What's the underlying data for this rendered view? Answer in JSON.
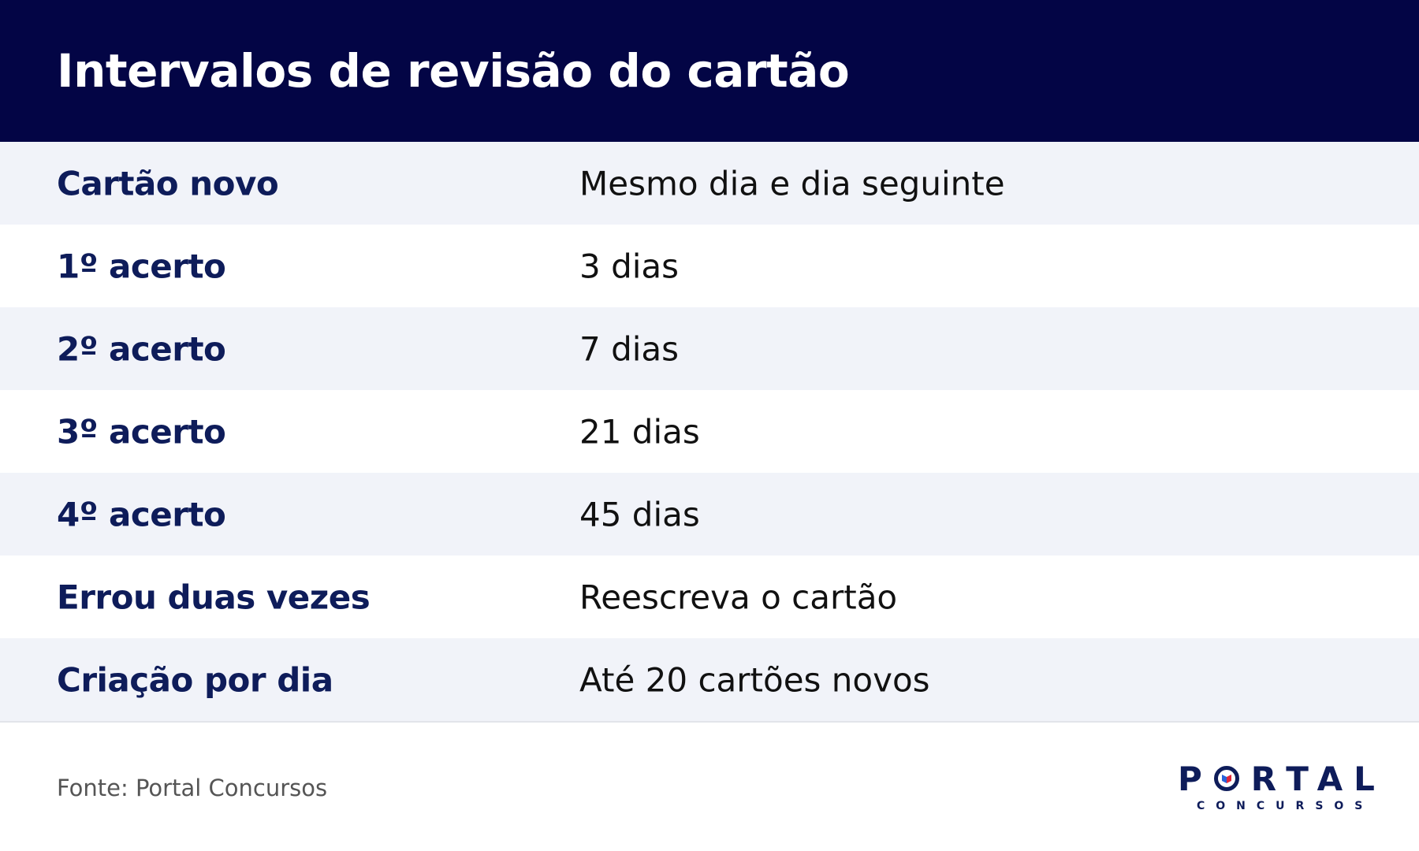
{
  "header": {
    "title": "Intervalos de revisão do cartão"
  },
  "table": {
    "rows": [
      {
        "label": "Cartão novo",
        "value": "Mesmo dia e dia seguinte"
      },
      {
        "label": "1º acerto",
        "value": "3 dias"
      },
      {
        "label": "2º acerto",
        "value": "7 dias"
      },
      {
        "label": "3º acerto",
        "value": "21 dias"
      },
      {
        "label": "4º acerto",
        "value": "45 dias"
      },
      {
        "label": "Errou duas vezes",
        "value": "Reescreva o cartão"
      },
      {
        "label": "Criação por dia",
        "value": "Até 20 cartões novos"
      }
    ]
  },
  "footer": {
    "source": "Fonte: Portal Concursos",
    "logo_p": "P",
    "logo_rest": "RTAL",
    "logo_sub": "CONCURSOS"
  },
  "colors": {
    "header_bg": "#030545",
    "label_text": "#0e1c5a",
    "shaded_row": "#f1f3f9",
    "logo_red": "#e0263a",
    "logo_blue": "#2a62d8"
  },
  "icons": {
    "logo_o": "portal-o-emblem-icon"
  }
}
